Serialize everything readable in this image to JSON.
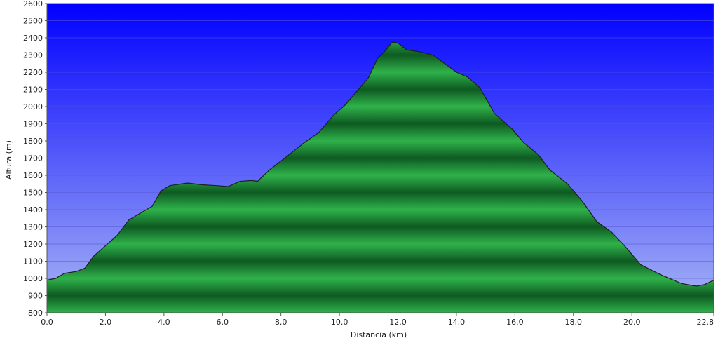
{
  "chart_data": {
    "type": "area",
    "xlabel": "Distancia  (km)",
    "ylabel": "Altura (m)",
    "xlim": [
      0,
      22.8
    ],
    "ylim": [
      800,
      2600
    ],
    "x_ticks": [
      "0.0",
      "2.0",
      "4.0",
      "6.0",
      "8.0",
      "10.0",
      "12.0",
      "14.0",
      "16.0",
      "18.0",
      "20.0",
      "22.8"
    ],
    "x_tick_values": [
      0,
      2,
      4,
      6,
      8,
      10,
      12,
      14,
      16,
      18,
      20,
      22.8
    ],
    "y_ticks": [
      "800",
      "900",
      "1000",
      "1100",
      "1200",
      "1300",
      "1400",
      "1500",
      "1600",
      "1700",
      "1800",
      "1900",
      "2000",
      "2100",
      "2200",
      "2300",
      "2400",
      "2500",
      "2600"
    ],
    "y_tick_values": [
      800,
      900,
      1000,
      1100,
      1200,
      1300,
      1400,
      1500,
      1600,
      1700,
      1800,
      1900,
      2000,
      2100,
      2200,
      2300,
      2400,
      2500,
      2600
    ],
    "grid": true,
    "colors": {
      "sky_top": "#0000ff",
      "sky_bottom": "#a9b6f5",
      "fill_light": "#2fb24a",
      "fill_dark": "#0e5a22",
      "outline": "#1f1f1f"
    },
    "x": [
      0,
      0.3,
      0.6,
      1.0,
      1.3,
      1.6,
      2.0,
      2.4,
      2.8,
      3.2,
      3.6,
      3.9,
      4.2,
      4.8,
      5.3,
      5.8,
      6.2,
      6.6,
      7.0,
      7.2,
      7.6,
      8.2,
      8.8,
      9.3,
      9.8,
      10.2,
      10.6,
      11.0,
      11.3,
      11.6,
      11.8,
      12.0,
      12.3,
      12.7,
      13.2,
      13.6,
      14.0,
      14.4,
      14.8,
      15.3,
      15.9,
      16.3,
      16.8,
      17.2,
      17.8,
      18.3,
      18.8,
      19.3,
      19.8,
      20.3,
      21.0,
      21.7,
      22.2,
      22.5,
      22.8
    ],
    "y": [
      990,
      1000,
      1030,
      1040,
      1060,
      1130,
      1190,
      1250,
      1340,
      1380,
      1420,
      1510,
      1540,
      1555,
      1545,
      1540,
      1535,
      1565,
      1570,
      1565,
      1630,
      1710,
      1790,
      1850,
      1950,
      2010,
      2090,
      2170,
      2280,
      2330,
      2375,
      2370,
      2330,
      2320,
      2300,
      2250,
      2200,
      2170,
      2110,
      1960,
      1870,
      1790,
      1720,
      1630,
      1550,
      1450,
      1330,
      1270,
      1180,
      1080,
      1020,
      970,
      955,
      965,
      990
    ]
  }
}
